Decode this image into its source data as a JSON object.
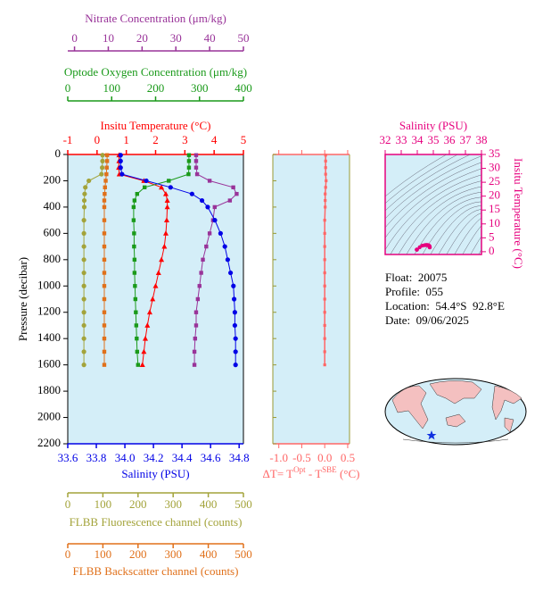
{
  "chart_data": [
    {
      "type": "profile",
      "ylabel": "Pressure (decibar)",
      "ylim": [
        0,
        2200
      ],
      "yticks": [
        0,
        200,
        400,
        600,
        800,
        1000,
        1200,
        1400,
        1600,
        1800,
        2000,
        2200
      ],
      "pressure": [
        5,
        50,
        100,
        150,
        200,
        250,
        300,
        350,
        400,
        500,
        600,
        700,
        800,
        900,
        1000,
        1100,
        1200,
        1300,
        1400,
        1500,
        1600
      ],
      "series": [
        {
          "name": "Insitu Temperature (°C)",
          "color": "#ff0000",
          "marker": "triangle",
          "axis": "top",
          "xlim": [
            -1,
            5
          ],
          "xticks": [
            -1,
            0,
            1,
            2,
            3,
            4,
            5
          ],
          "values": [
            0.75,
            0.75,
            0.74,
            0.76,
            1.6,
            2.2,
            2.35,
            2.4,
            2.4,
            2.38,
            2.35,
            2.3,
            2.2,
            2.1,
            2.0,
            1.9,
            1.8,
            1.72,
            1.65,
            1.6,
            1.55
          ]
        },
        {
          "name": "Optode Oxygen Concentration (μm/kg)",
          "color": "#1a9a1a",
          "marker": "square",
          "axis": "top",
          "xlim": [
            0,
            400
          ],
          "xticks": [
            0,
            100,
            200,
            300,
            400
          ],
          "values": [
            276,
            276,
            276,
            275,
            230,
            175,
            158,
            152,
            150,
            150,
            151,
            151,
            152,
            152,
            153,
            154,
            155,
            156,
            157,
            158,
            160
          ]
        },
        {
          "name": "Nitrate Concentration (μm/kg)",
          "color": "#993399",
          "marker": "square",
          "axis": "top",
          "xlim": [
            -2,
            50
          ],
          "xticks": [
            0,
            10,
            20,
            30,
            40,
            50
          ],
          "values": [
            36,
            36,
            36,
            36.3,
            40,
            47,
            48,
            46,
            41.5,
            41,
            40,
            39,
            38,
            37.5,
            37,
            36.5,
            36,
            36,
            35.7,
            35.5,
            35.5
          ]
        },
        {
          "name": "Salinity (PSU)",
          "color": "#0000e6",
          "marker": "circle",
          "axis": "bottom",
          "xlim": [
            33.6,
            34.83
          ],
          "xticks": [
            33.6,
            33.8,
            {
              "value": 34,
              "label": "34.0"
            },
            34.2,
            34.4,
            34.6,
            34.8
          ],
          "values": [
            33.97,
            33.97,
            33.97,
            33.98,
            34.15,
            34.32,
            34.47,
            34.54,
            34.58,
            34.63,
            34.67,
            34.7,
            34.72,
            34.74,
            34.76,
            34.765,
            34.77,
            34.77,
            34.775,
            34.775,
            34.775
          ]
        },
        {
          "name": "FLBB Fluorescence channel (counts)",
          "color": "#a3a33a",
          "marker": "circle",
          "axis": "bottom",
          "xlim": [
            0,
            500
          ],
          "xticks": [
            0,
            100,
            200,
            300,
            400,
            500
          ],
          "values": [
            99,
            99,
            98,
            96,
            60,
            50,
            48,
            47,
            47,
            46,
            46,
            46,
            46,
            46,
            46,
            46,
            46,
            46,
            46,
            46,
            46
          ]
        },
        {
          "name": "FLBB Backscatter channel (counts)",
          "color": "#e0701a",
          "marker": "square",
          "axis": "bottom",
          "xlim": [
            0,
            500
          ],
          "xticks": [
            0,
            100,
            200,
            300,
            400,
            500
          ],
          "values": [
            112,
            112,
            111,
            110,
            108,
            106,
            105,
            104,
            104,
            104,
            104,
            104,
            104,
            104,
            104,
            104,
            104,
            104,
            104,
            104,
            104
          ]
        }
      ]
    },
    {
      "type": "delta",
      "title_parts": [
        "ΔT= T",
        "Opt",
        " - T",
        "SBE",
        " (°C)"
      ],
      "color": "#ff6666",
      "xlim": [
        -1.13,
        0.54
      ],
      "xticks": [
        {
          "value": -1,
          "label": "-1.0"
        },
        -0.5,
        {
          "value": 0,
          "label": "0.0"
        },
        0.5
      ],
      "ylim": [
        0,
        2200
      ],
      "yticks": [
        0,
        200,
        400,
        600,
        800,
        1000,
        1200,
        1400,
        1600,
        1800,
        2000,
        2200
      ],
      "pressure": [
        5,
        50,
        100,
        150,
        200,
        250,
        300,
        350,
        400,
        500,
        600,
        700,
        800,
        900,
        1000,
        1100,
        1200,
        1300,
        1400,
        1500,
        1600
      ],
      "values": [
        0.02,
        0.02,
        0.02,
        0.02,
        0.03,
        0.02,
        0.01,
        0.01,
        0.01,
        0.0,
        0.0,
        0.0,
        0.0,
        0.0,
        0.0,
        0.0,
        0.0,
        0.0,
        0.0,
        0.0,
        0.0
      ]
    },
    {
      "type": "ts",
      "xlabel": "Salinity (PSU)",
      "ylabel": "Insitu Temperature (°C)",
      "color": "#e6007e",
      "xlim": [
        32,
        38
      ],
      "xticks": [
        32,
        33,
        34,
        35,
        36,
        37,
        38
      ],
      "ylim": [
        -1,
        35
      ],
      "yticks": [
        0,
        5,
        10,
        15,
        20,
        25,
        30,
        35
      ],
      "x": [
        33.97,
        33.97,
        33.97,
        33.98,
        34.15,
        34.32,
        34.47,
        34.54,
        34.58,
        34.63,
        34.67,
        34.7,
        34.72,
        34.74,
        34.76,
        34.765,
        34.77,
        34.77,
        34.775,
        34.775,
        34.775
      ],
      "y": [
        0.75,
        0.75,
        0.74,
        0.76,
        1.6,
        2.2,
        2.35,
        2.4,
        2.4,
        2.38,
        2.35,
        2.3,
        2.2,
        2.1,
        2.0,
        1.9,
        1.8,
        1.72,
        1.65,
        1.6,
        1.55
      ]
    }
  ],
  "info": [
    "Float:  20075",
    "Profile:  055",
    "Location:  54.4°S  92.8°E",
    "Date:  09/06/2025"
  ]
}
